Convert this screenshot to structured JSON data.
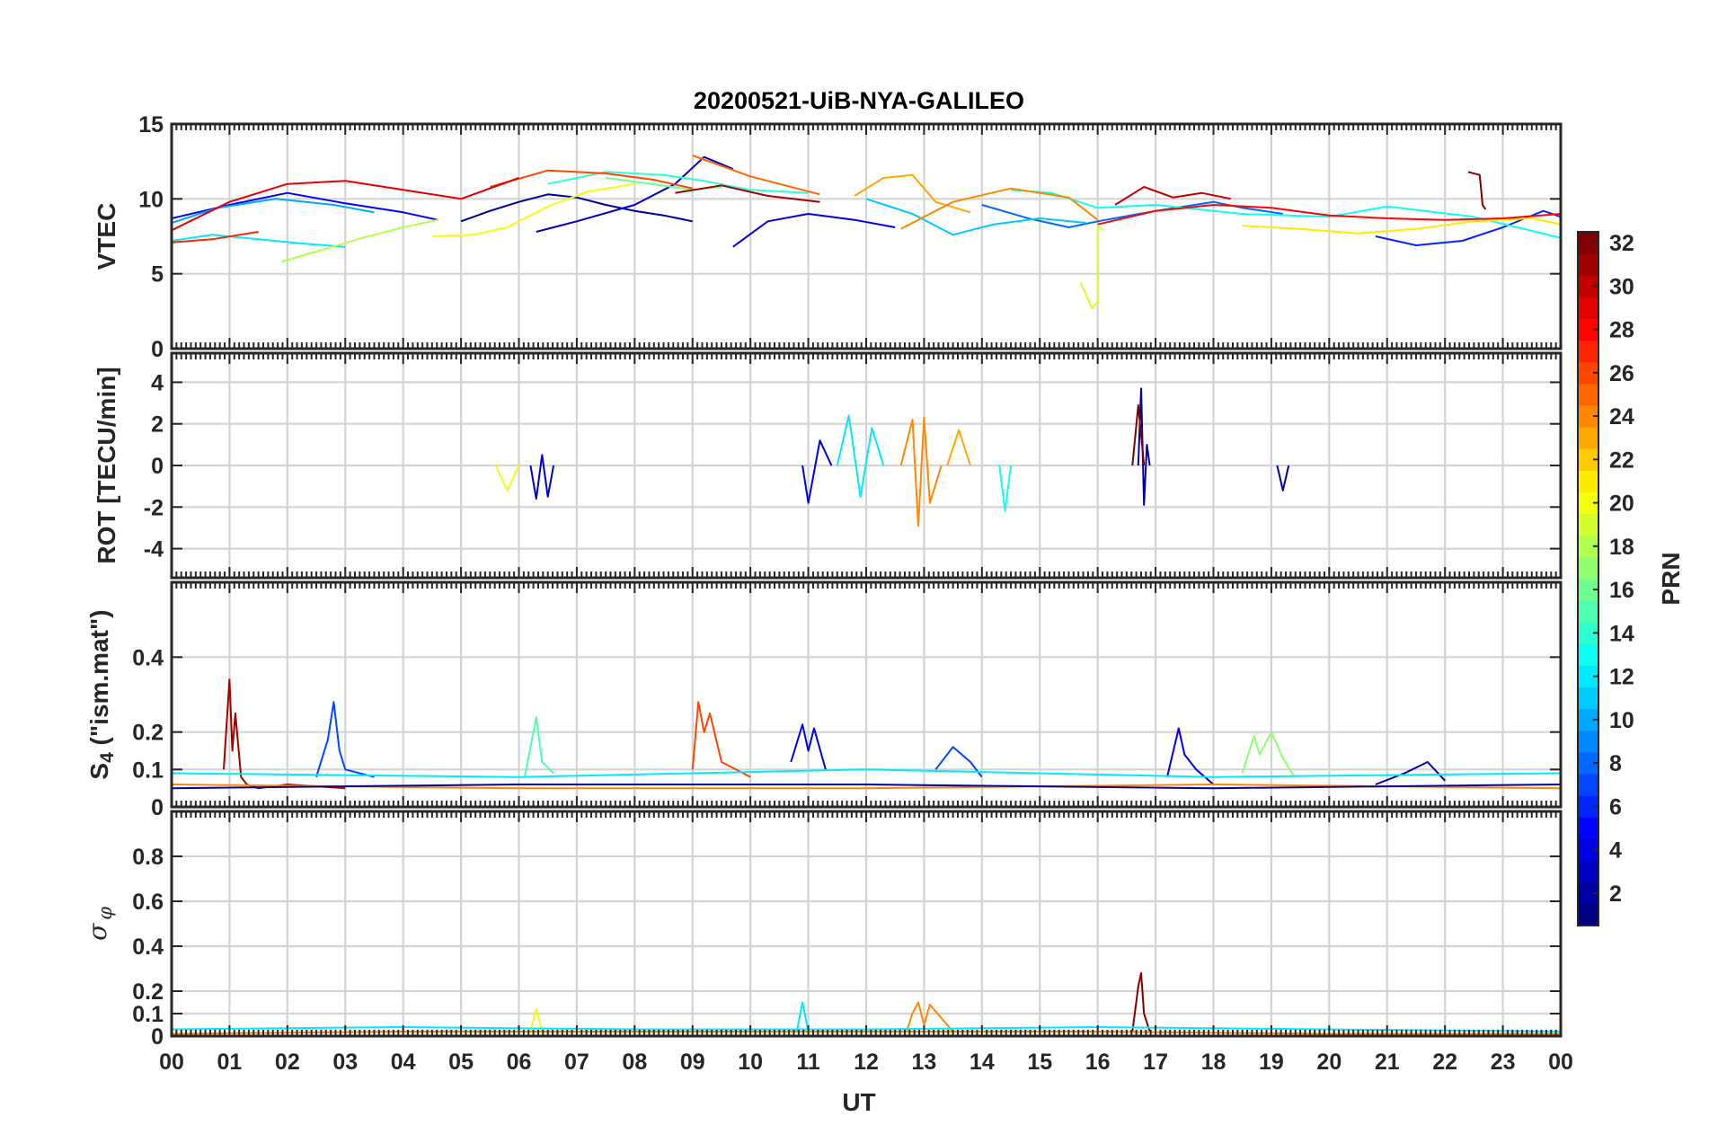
{
  "figure": {
    "title": "20200521-UiB-NYA-GALILEO",
    "xlabel": "UT"
  },
  "chart_data": [
    {
      "type": "line",
      "ylabel": "VTEC",
      "ylim": [
        0,
        15
      ],
      "yticks": [
        "0",
        "5",
        "10",
        "15"
      ],
      "yticks_values": [
        0,
        5,
        10,
        15
      ],
      "xlim": [
        0,
        24
      ],
      "xticks": [
        "00",
        "01",
        "02",
        "03",
        "04",
        "05",
        "06",
        "07",
        "08",
        "09",
        "10",
        "11",
        "12",
        "13",
        "14",
        "15",
        "16",
        "17",
        "18",
        "19",
        "20",
        "21",
        "22",
        "23",
        "00"
      ],
      "grid": true,
      "series": [
        {
          "prn": 2,
          "x": [
            5.0,
            5.5,
            6.0,
            6.5,
            7.0,
            7.5,
            8.0,
            8.5,
            9.0
          ],
          "y": [
            8.5,
            9.2,
            9.8,
            10.3,
            10.1,
            9.6,
            9.2,
            8.9,
            8.5
          ]
        },
        {
          "prn": 3,
          "x": [
            6.3,
            7.0,
            8.0,
            8.7,
            9.2,
            9.7
          ],
          "y": [
            7.8,
            8.5,
            9.6,
            11.0,
            12.8,
            12.0
          ]
        },
        {
          "prn": 4,
          "x": [
            9.7,
            10.3,
            11.0,
            11.8,
            12.5
          ],
          "y": [
            6.8,
            8.5,
            9.0,
            8.6,
            8.1
          ]
        },
        {
          "prn": 5,
          "x": [
            0.0,
            1.0,
            2.0,
            3.0,
            4.0,
            4.6
          ],
          "y": [
            8.7,
            9.6,
            10.4,
            9.7,
            9.1,
            8.6
          ]
        },
        {
          "prn": 6,
          "x": [
            20.8,
            21.5,
            22.3,
            23.0,
            23.7,
            24.0
          ],
          "y": [
            7.5,
            6.9,
            7.2,
            8.1,
            9.2,
            8.8
          ]
        },
        {
          "prn": 8,
          "x": [
            14.0,
            14.8,
            15.5,
            16.0,
            17.0,
            18.0,
            18.5,
            19.2
          ],
          "y": [
            9.6,
            8.7,
            8.1,
            8.5,
            9.2,
            9.8,
            9.4,
            9.0
          ]
        },
        {
          "prn": 10,
          "x": [
            0.0,
            0.8,
            1.8,
            2.8,
            3.5
          ],
          "y": [
            8.4,
            9.4,
            10.0,
            9.6,
            9.1
          ]
        },
        {
          "prn": 11,
          "x": [
            12.0,
            12.8,
            13.5,
            14.2,
            15.0,
            15.8
          ],
          "y": [
            10.0,
            9.0,
            7.6,
            8.3,
            8.7,
            8.4
          ]
        },
        {
          "prn": 12,
          "x": [
            0.0,
            0.7,
            1.5,
            2.3,
            3.0
          ],
          "y": [
            7.2,
            7.6,
            7.3,
            7.0,
            6.8
          ]
        },
        {
          "prn": 13,
          "x": [
            14.5,
            15.2,
            16.0,
            17.0,
            18.5,
            20.0,
            21.0,
            22.5,
            24.0
          ],
          "y": [
            10.6,
            10.4,
            9.4,
            9.6,
            9.0,
            8.8,
            9.5,
            8.8,
            7.4
          ]
        },
        {
          "prn": 14,
          "x": [
            6.5,
            7.5,
            8.5,
            9.2,
            10.0,
            11.0
          ],
          "y": [
            11.0,
            11.8,
            11.6,
            11.2,
            10.6,
            10.4
          ]
        },
        {
          "prn": 16,
          "x": [
            7.5,
            8.3,
            9.0,
            9.5
          ],
          "y": [
            11.4,
            11.0,
            10.6,
            10.8
          ]
        },
        {
          "prn": 18,
          "x": [
            1.9,
            2.6,
            3.3,
            4.0,
            4.6
          ],
          "y": [
            5.8,
            6.6,
            7.4,
            8.1,
            8.6
          ]
        },
        {
          "prn": 19,
          "x": [
            15.7,
            15.8,
            15.9,
            16.0,
            16.0,
            16.1
          ],
          "y": [
            4.4,
            3.6,
            2.7,
            3.1,
            8.2,
            7.9
          ]
        },
        {
          "prn": 20,
          "x": [
            4.5,
            5.2,
            5.8,
            6.5,
            7.2,
            8.0
          ],
          "y": [
            7.5,
            7.6,
            8.1,
            9.5,
            10.5,
            11.0
          ]
        },
        {
          "prn": 21,
          "x": [
            18.5,
            19.5,
            20.5,
            21.5,
            22.5,
            23.5,
            24.0
          ],
          "y": [
            8.2,
            8.0,
            7.7,
            8.0,
            8.5,
            8.7,
            8.3
          ]
        },
        {
          "prn": 23,
          "x": [
            11.8,
            12.3,
            12.8,
            13.2,
            13.8
          ],
          "y": [
            10.2,
            11.4,
            11.6,
            9.8,
            9.1
          ]
        },
        {
          "prn": 24,
          "x": [
            12.6,
            13.5,
            14.5,
            15.5,
            16.0
          ],
          "y": [
            8.0,
            9.8,
            10.7,
            10.1,
            8.6
          ]
        },
        {
          "prn": 25,
          "x": [
            9.0,
            9.5,
            10.0,
            10.5,
            11.2
          ],
          "y": [
            12.9,
            12.2,
            11.5,
            11.0,
            10.3
          ]
        },
        {
          "prn": 26,
          "x": [
            5.5,
            6.5,
            7.5,
            8.3,
            9.0
          ],
          "y": [
            10.8,
            11.9,
            11.7,
            11.3,
            10.7
          ]
        },
        {
          "prn": 27,
          "x": [
            0.0,
            0.7,
            1.5
          ],
          "y": [
            7.1,
            7.3,
            7.8
          ]
        },
        {
          "prn": 28,
          "x": [
            16.0,
            17.0,
            18.0,
            19.0,
            20.0,
            21.0,
            22.0,
            23.0,
            24.0
          ],
          "y": [
            8.3,
            9.2,
            9.6,
            9.4,
            8.9,
            8.7,
            8.6,
            8.7,
            9.0
          ]
        },
        {
          "prn": 29,
          "x": [
            0.0,
            1.0,
            2.0,
            3.0,
            4.0,
            5.0,
            6.0
          ],
          "y": [
            7.9,
            9.8,
            11.0,
            11.2,
            10.6,
            10.0,
            11.4
          ]
        },
        {
          "prn": 30,
          "x": [
            16.3,
            16.8,
            17.3,
            17.8,
            18.3
          ],
          "y": [
            9.6,
            10.8,
            10.1,
            10.4,
            10.0
          ]
        },
        {
          "prn": 31,
          "x": [
            8.7,
            9.5,
            10.3,
            11.2
          ],
          "y": [
            10.4,
            10.9,
            10.2,
            9.8
          ]
        },
        {
          "prn": 32,
          "x": [
            22.4,
            22.6,
            22.65,
            22.7
          ],
          "y": [
            11.8,
            11.6,
            9.6,
            9.3
          ]
        }
      ]
    },
    {
      "type": "line",
      "ylabel": "ROT [TECU/min]",
      "ylim": [
        -5.4,
        5.4
      ],
      "yticks": [
        "-4",
        "-2",
        "0",
        "2",
        "4"
      ],
      "yticks_values": [
        -4,
        -2,
        0,
        2,
        4
      ],
      "xlim": [
        0,
        24
      ],
      "grid": true,
      "series": [
        {
          "prn": 3,
          "x": [
            6.2,
            6.3,
            6.4,
            6.5,
            6.6
          ],
          "y": [
            0,
            -1.6,
            0.5,
            -1.5,
            0
          ]
        },
        {
          "prn": 4,
          "x": [
            10.9,
            11.0,
            11.2,
            11.4
          ],
          "y": [
            0,
            -1.8,
            1.2,
            0
          ]
        },
        {
          "prn": 2,
          "x": [
            16.7,
            16.75,
            16.8,
            16.85,
            16.9
          ],
          "y": [
            0,
            3.7,
            -1.9,
            1.0,
            0
          ]
        },
        {
          "prn": 2,
          "x": [
            19.1,
            19.2,
            19.3
          ],
          "y": [
            0,
            -1.2,
            0
          ]
        },
        {
          "prn": 12,
          "x": [
            11.5,
            11.7,
            11.9,
            12.1,
            12.3
          ],
          "y": [
            0,
            2.4,
            -1.5,
            1.8,
            0
          ]
        },
        {
          "prn": 13,
          "x": [
            14.3,
            14.4,
            14.5
          ],
          "y": [
            0,
            -2.2,
            0
          ]
        },
        {
          "prn": 24,
          "x": [
            12.6,
            12.8,
            12.9,
            13.0,
            13.1,
            13.3
          ],
          "y": [
            0,
            2.2,
            -2.9,
            2.3,
            -1.8,
            0
          ]
        },
        {
          "prn": 23,
          "x": [
            13.4,
            13.6,
            13.8
          ],
          "y": [
            0,
            1.7,
            0
          ]
        },
        {
          "prn": 32,
          "x": [
            16.6,
            16.7,
            16.8
          ],
          "y": [
            0,
            2.9,
            0
          ]
        },
        {
          "prn": 20,
          "x": [
            5.6,
            5.8,
            6.0
          ],
          "y": [
            0,
            -1.2,
            0
          ]
        }
      ]
    },
    {
      "type": "line",
      "ylabel": "S4 (\"ism.mat\")",
      "ylim": [
        0,
        0.6
      ],
      "yticks": [
        "0",
        "0.1",
        "0.2",
        "0.4"
      ],
      "yticks_values": [
        0,
        0.1,
        0.2,
        0.4
      ],
      "xlim": [
        0,
        24
      ],
      "grid": true,
      "series": [
        {
          "prn": 31,
          "x": [
            0.9,
            1.0,
            1.05,
            1.1,
            1.2,
            1.3,
            1.5,
            2.0,
            3.0
          ],
          "y": [
            0.1,
            0.34,
            0.15,
            0.25,
            0.08,
            0.06,
            0.05,
            0.06,
            0.05
          ]
        },
        {
          "prn": 7,
          "x": [
            2.5,
            2.7,
            2.8,
            2.9,
            3.0,
            3.5
          ],
          "y": [
            0.08,
            0.18,
            0.28,
            0.15,
            0.1,
            0.08
          ]
        },
        {
          "prn": 15,
          "x": [
            6.1,
            6.25,
            6.3,
            6.4,
            6.6
          ],
          "y": [
            0.08,
            0.2,
            0.24,
            0.12,
            0.09
          ]
        },
        {
          "prn": 26,
          "x": [
            9.0,
            9.1,
            9.2,
            9.3,
            9.5,
            10.0
          ],
          "y": [
            0.1,
            0.28,
            0.2,
            0.25,
            0.12,
            0.08
          ]
        },
        {
          "prn": 4,
          "x": [
            10.7,
            10.9,
            11.0,
            11.1,
            11.3
          ],
          "y": [
            0.12,
            0.22,
            0.15,
            0.21,
            0.1
          ]
        },
        {
          "prn": 7,
          "x": [
            13.2,
            13.5,
            13.8,
            14.0
          ],
          "y": [
            0.1,
            0.16,
            0.12,
            0.08
          ]
        },
        {
          "prn": 4,
          "x": [
            17.2,
            17.4,
            17.5,
            17.7,
            18.0
          ],
          "y": [
            0.08,
            0.21,
            0.14,
            0.1,
            0.06
          ]
        },
        {
          "prn": 17,
          "x": [
            18.5,
            18.7,
            18.8,
            19.0,
            19.2,
            19.4
          ],
          "y": [
            0.09,
            0.19,
            0.14,
            0.2,
            0.13,
            0.08
          ]
        },
        {
          "prn": 2,
          "x": [
            20.8,
            21.3,
            21.7,
            22.0
          ],
          "y": [
            0.06,
            0.09,
            0.12,
            0.07
          ]
        },
        {
          "prn": 12,
          "x": [
            0.0,
            6.0,
            12.0,
            18.0,
            24.0
          ],
          "y": [
            0.09,
            0.08,
            0.1,
            0.08,
            0.09
          ]
        },
        {
          "prn": 24,
          "x": [
            0.0,
            6.0,
            12.0,
            18.0,
            24.0
          ],
          "y": [
            0.06,
            0.05,
            0.05,
            0.06,
            0.05
          ]
        },
        {
          "prn": 2,
          "x": [
            0.0,
            6.0,
            12.0,
            18.0,
            24.0
          ],
          "y": [
            0.05,
            0.06,
            0.06,
            0.05,
            0.06
          ]
        }
      ]
    },
    {
      "type": "line",
      "ylabel": "σ φ",
      "ylim": [
        0,
        1
      ],
      "yticks": [
        "0",
        "0.1",
        "0.2",
        "0.4",
        "0.6",
        "0.8"
      ],
      "yticks_values": [
        0,
        0.1,
        0.2,
        0.4,
        0.6,
        0.8
      ],
      "xlim": [
        0,
        24
      ],
      "grid": true,
      "series": [
        {
          "prn": 32,
          "x": [
            16.6,
            16.7,
            16.75,
            16.8,
            16.9
          ],
          "y": [
            0.02,
            0.22,
            0.28,
            0.1,
            0.02
          ]
        },
        {
          "prn": 24,
          "x": [
            12.7,
            12.8,
            12.9,
            13.0,
            13.1,
            13.3,
            13.5
          ],
          "y": [
            0.02,
            0.1,
            0.15,
            0.05,
            0.14,
            0.08,
            0.02
          ]
        },
        {
          "prn": 12,
          "x": [
            10.8,
            10.9,
            11.0
          ],
          "y": [
            0.02,
            0.15,
            0.02
          ]
        },
        {
          "prn": 20,
          "x": [
            6.2,
            6.3,
            6.4
          ],
          "y": [
            0.02,
            0.12,
            0.02
          ]
        },
        {
          "prn": 12,
          "x": [
            0.0,
            4.0,
            8.0,
            12.0,
            16.0,
            20.0,
            24.0
          ],
          "y": [
            0.03,
            0.04,
            0.03,
            0.03,
            0.04,
            0.03,
            0.02
          ]
        },
        {
          "prn": 24,
          "x": [
            0.0,
            4.0,
            8.0,
            12.0,
            16.0,
            20.0,
            24.0
          ],
          "y": [
            0.01,
            0.02,
            0.02,
            0.02,
            0.02,
            0.01,
            0.01
          ]
        }
      ]
    }
  ],
  "colorbar": {
    "label": "PRN",
    "min": 1,
    "max": 32,
    "ticks": [
      "2",
      "4",
      "6",
      "8",
      "10",
      "12",
      "14",
      "16",
      "18",
      "20",
      "22",
      "24",
      "26",
      "28",
      "30",
      "32"
    ],
    "colormap": "jet"
  }
}
